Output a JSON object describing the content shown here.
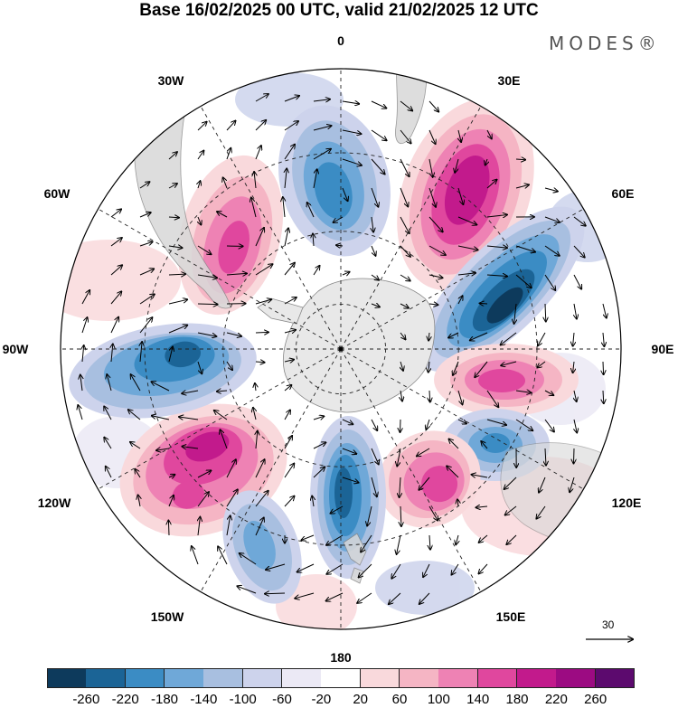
{
  "title": "Base 16/02/2025 00 UTC, valid 21/02/2025 12 UTC",
  "brand": "MODES®",
  "longitude_labels": {
    "lon_0": "0",
    "lon_30e": "30E",
    "lon_60e": "60E",
    "lon_90e": "90E",
    "lon_120e": "120E",
    "lon_150e": "150E",
    "lon_180": "180",
    "lon_150w": "150W",
    "lon_120w": "120W",
    "lon_90w": "90W",
    "lon_60w": "60W",
    "lon_30w": "30W"
  },
  "reference_vector": {
    "label": "30"
  },
  "colorbar": {
    "colors": [
      "#0d3a5c",
      "#1b6496",
      "#3b8cc4",
      "#6fa8d8",
      "#a8bfe0",
      "#cdd3ec",
      "#ebe9f5",
      "#ffffff",
      "#f9d9dc",
      "#f5b5c4",
      "#ee82b4",
      "#e0479e",
      "#c21a8c",
      "#9c0b82",
      "#5c0a6e"
    ],
    "ticks": [
      "-260",
      "-220",
      "-180",
      "-140",
      "-100",
      "-60",
      "-20",
      "20",
      "60",
      "100",
      "140",
      "180",
      "220",
      "260"
    ]
  },
  "anomaly_features": [
    {
      "name": "neg-0E",
      "color": "#3b8cc4"
    },
    {
      "name": "pos-30E",
      "color": "#c21a8c"
    },
    {
      "name": "neg-70E",
      "color": "#0d3a5c"
    },
    {
      "name": "pos-100E",
      "color": "#e0479e"
    },
    {
      "name": "neg-115E",
      "color": "#3b8cc4"
    },
    {
      "name": "pos-150E",
      "color": "#e0479e"
    },
    {
      "name": "neg-180",
      "color": "#1b6496"
    },
    {
      "name": "pos-125W",
      "color": "#e0479e"
    },
    {
      "name": "neg-90W",
      "color": "#1b6496"
    },
    {
      "name": "pos-50W",
      "color": "#ee82b4"
    },
    {
      "name": "neg-150W",
      "color": "#6fa8d8"
    }
  ]
}
